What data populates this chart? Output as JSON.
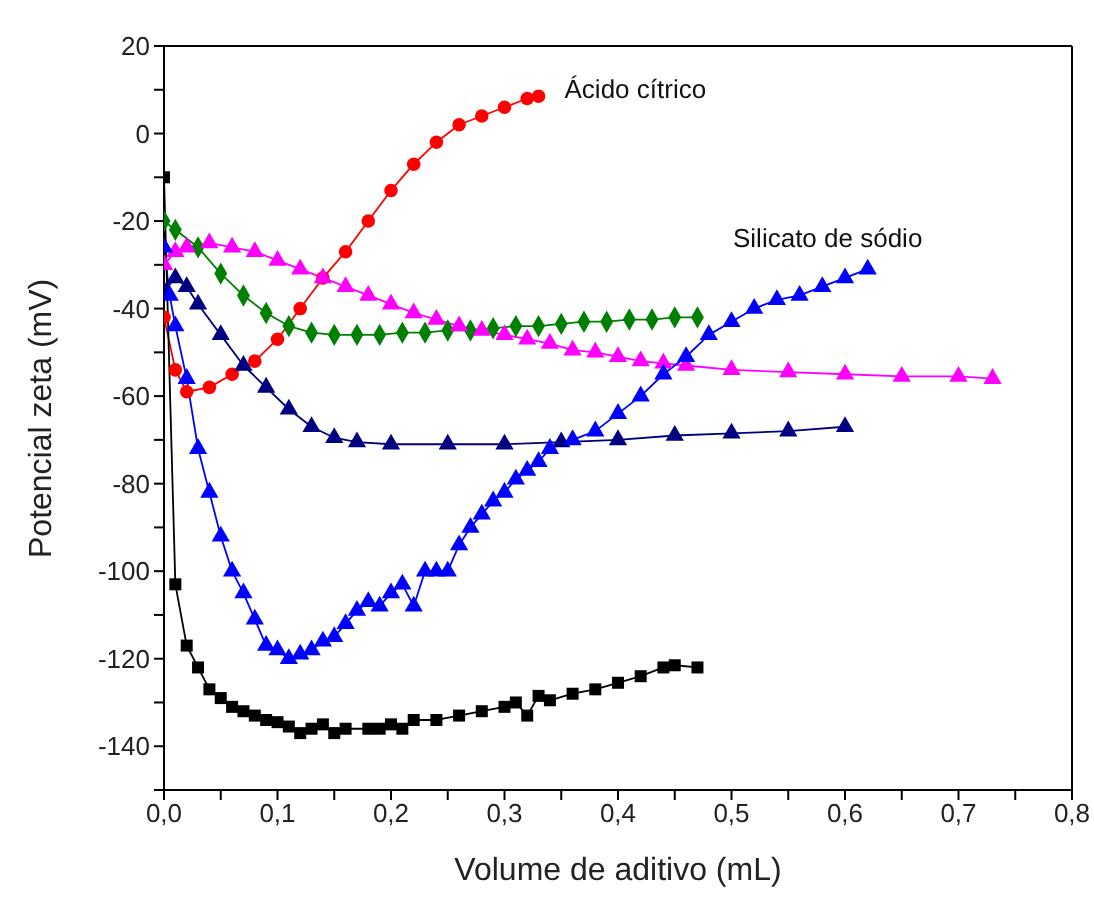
{
  "chart_data": {
    "type": "line",
    "xlabel": "Volume de aditivo (mL)",
    "ylabel": "Potencial zeta (mV)",
    "xlim": [
      0,
      0.8
    ],
    "xticks": [
      {
        "value": 0,
        "label": "0,0"
      },
      {
        "value": 0.05,
        "label": null
      },
      {
        "value": 0.1,
        "label": "0,1"
      },
      {
        "value": 0.15,
        "label": null
      },
      {
        "value": 0.2,
        "label": "0,2"
      },
      {
        "value": 0.25,
        "label": null
      },
      {
        "value": 0.3,
        "label": "0,3"
      },
      {
        "value": 0.35,
        "label": null
      },
      {
        "value": 0.4,
        "label": "0,4"
      },
      {
        "value": 0.45,
        "label": null
      },
      {
        "value": 0.5,
        "label": "0,5"
      },
      {
        "value": 0.55,
        "label": null
      },
      {
        "value": 0.6,
        "label": "0,6"
      },
      {
        "value": 0.65,
        "label": null
      },
      {
        "value": 0.7,
        "label": "0,7"
      },
      {
        "value": 0.75,
        "label": null
      },
      {
        "value": 0.8,
        "label": "0,8"
      }
    ],
    "ylim": [
      -150,
      20
    ],
    "yticks": [
      20,
      {
        "value": 10,
        "label": null
      },
      0,
      {
        "value": -10,
        "label": null
      },
      -20,
      {
        "value": -30,
        "label": null
      },
      -40,
      {
        "value": -50,
        "label": null
      },
      -60,
      {
        "value": -70,
        "label": null
      },
      -80,
      {
        "value": -90,
        "label": null
      },
      -100,
      {
        "value": -110,
        "label": null
      },
      -120,
      {
        "value": -130,
        "label": null
      },
      -140,
      {
        "value": -150,
        "label": null
      }
    ],
    "line_style": "solid",
    "series": [
      {
        "name": "Ácido cítrico",
        "color": "#ff0000",
        "marker": "circle",
        "x": [
          0,
          0.01,
          0.02,
          0.04,
          0.06,
          0.08,
          0.1,
          0.12,
          0.14,
          0.16,
          0.18,
          0.2,
          0.22,
          0.24,
          0.26,
          0.28,
          0.3,
          0.32,
          0.33
        ],
        "values": [
          -42,
          -54,
          -59,
          -58,
          -55,
          -52,
          -47,
          -40,
          -33,
          -27,
          -20,
          -13,
          -7,
          -2,
          2,
          4,
          6,
          8,
          8.5
        ]
      },
      {
        "color": "#008000",
        "marker": "diamond",
        "x": [
          0,
          0.01,
          0.03,
          0.05,
          0.07,
          0.09,
          0.11,
          0.13,
          0.15,
          0.17,
          0.19,
          0.21,
          0.23,
          0.25,
          0.27,
          0.29,
          0.31,
          0.33,
          0.35,
          0.37,
          0.39,
          0.41,
          0.43,
          0.45,
          0.47
        ],
        "values": [
          -20,
          -22,
          -26,
          -32,
          -37,
          -41,
          -44,
          -45.5,
          -46,
          -46,
          -46,
          -45.5,
          -45.5,
          -45,
          -45,
          -44.5,
          -44,
          -44,
          -43.5,
          -43,
          -43,
          -42.5,
          -42.5,
          -42,
          -42
        ]
      },
      {
        "color": "#ff00ff",
        "marker": "triangle",
        "x": [
          0,
          0.01,
          0.02,
          0.04,
          0.06,
          0.08,
          0.1,
          0.12,
          0.14,
          0.16,
          0.18,
          0.2,
          0.22,
          0.24,
          0.26,
          0.28,
          0.3,
          0.32,
          0.34,
          0.36,
          0.38,
          0.4,
          0.42,
          0.44,
          0.46,
          0.5,
          0.55,
          0.6,
          0.65,
          0.7,
          0.73
        ],
        "values": [
          -30,
          -27,
          -26,
          -25,
          -26,
          -27,
          -29,
          -31,
          -33,
          -35,
          -37,
          -39,
          -41,
          -42.5,
          -44,
          -45,
          -46,
          -47,
          -48,
          -49.5,
          -50,
          -51,
          -52,
          -52.5,
          -53,
          -54,
          -54.5,
          -55,
          -55.5,
          -55.5,
          -56
        ]
      },
      {
        "color": "#000080",
        "marker": "triangle",
        "x": [
          0,
          0.01,
          0.02,
          0.03,
          0.05,
          0.07,
          0.09,
          0.11,
          0.13,
          0.15,
          0.17,
          0.2,
          0.25,
          0.3,
          0.35,
          0.4,
          0.45,
          0.5,
          0.55,
          0.6
        ],
        "values": [
          -36,
          -33,
          -35,
          -39,
          -46,
          -53,
          -58,
          -63,
          -67,
          -69.5,
          -70.5,
          -71,
          -71,
          -71,
          -70.5,
          -70,
          -69,
          -68.5,
          -68,
          -67
        ]
      },
      {
        "name": "Silicato de sódio",
        "color": "#0000ff",
        "marker": "triangle",
        "x": [
          0,
          0.005,
          0.01,
          0.02,
          0.03,
          0.04,
          0.05,
          0.06,
          0.07,
          0.08,
          0.09,
          0.1,
          0.11,
          0.12,
          0.13,
          0.14,
          0.15,
          0.16,
          0.17,
          0.18,
          0.19,
          0.2,
          0.21,
          0.22,
          0.23,
          0.24,
          0.25,
          0.26,
          0.27,
          0.28,
          0.29,
          0.3,
          0.31,
          0.32,
          0.33,
          0.34,
          0.36,
          0.38,
          0.4,
          0.42,
          0.44,
          0.46,
          0.48,
          0.5,
          0.52,
          0.54,
          0.56,
          0.58,
          0.6,
          0.62
        ],
        "values": [
          -26,
          -37,
          -44,
          -56,
          -72,
          -82,
          -92,
          -100,
          -105,
          -111,
          -117,
          -118,
          -120,
          -119,
          -118,
          -116,
          -115,
          -112,
          -109,
          -107,
          -108,
          -105,
          -103,
          -108,
          -100,
          -100,
          -100,
          -94,
          -90,
          -87,
          -84,
          -82,
          -79,
          -77,
          -75,
          -72,
          -70,
          -68,
          -64,
          -60,
          -55,
          -51,
          -46,
          -43,
          -40,
          -38,
          -37,
          -35,
          -33,
          -31
        ]
      },
      {
        "color": "#000000",
        "marker": "square",
        "x": [
          0,
          0.01,
          0.02,
          0.03,
          0.04,
          0.05,
          0.06,
          0.07,
          0.08,
          0.09,
          0.1,
          0.11,
          0.12,
          0.13,
          0.14,
          0.15,
          0.16,
          0.18,
          0.19,
          0.2,
          0.21,
          0.22,
          0.24,
          0.26,
          0.28,
          0.3,
          0.31,
          0.32,
          0.33,
          0.34,
          0.36,
          0.38,
          0.4,
          0.42,
          0.44,
          0.45,
          0.47
        ],
        "values": [
          -10,
          -103,
          -117,
          -122,
          -127,
          -129,
          -131,
          -132,
          -133,
          -134,
          -134.5,
          -135.5,
          -137,
          -136,
          -135,
          -137,
          -136,
          -136,
          -136,
          -135,
          -136,
          -134,
          -134,
          -133,
          -132,
          -131,
          -130,
          -133,
          -128.5,
          -129.5,
          -128,
          -127,
          -125.5,
          -124,
          -122,
          -121.5,
          -122
        ]
      }
    ]
  }
}
